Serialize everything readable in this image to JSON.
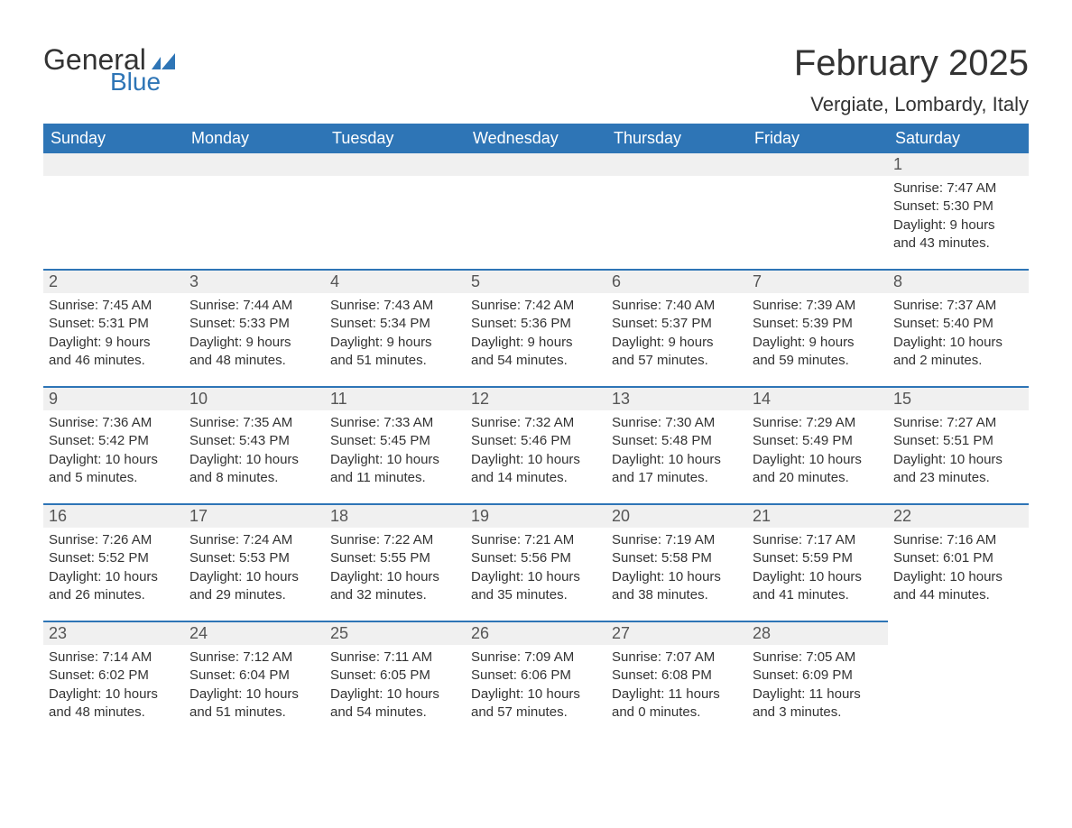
{
  "brand": {
    "word1": "General",
    "word2": "Blue",
    "word1_color": "#333333",
    "word2_color": "#2e75b6",
    "flag_color": "#2e75b6"
  },
  "header": {
    "month_title": "February 2025",
    "location": "Vergiate, Lombardy, Italy"
  },
  "style": {
    "header_bg": "#2e75b6",
    "header_text": "#ffffff",
    "daynum_bg": "#f0f0f0",
    "daynum_text": "#555555",
    "row_divider": "#2e75b6",
    "body_text": "#333333",
    "page_bg": "#ffffff",
    "title_fontsize": 40,
    "location_fontsize": 22,
    "th_fontsize": 18,
    "daynum_fontsize": 18,
    "body_fontsize": 15
  },
  "weekdays": [
    "Sunday",
    "Monday",
    "Tuesday",
    "Wednesday",
    "Thursday",
    "Friday",
    "Saturday"
  ],
  "weeks": [
    [
      {
        "empty": true
      },
      {
        "empty": true
      },
      {
        "empty": true
      },
      {
        "empty": true
      },
      {
        "empty": true
      },
      {
        "empty": true
      },
      {
        "day": "1",
        "sunrise": "Sunrise: 7:47 AM",
        "sunset": "Sunset: 5:30 PM",
        "daylight1": "Daylight: 9 hours",
        "daylight2": "and 43 minutes."
      }
    ],
    [
      {
        "day": "2",
        "sunrise": "Sunrise: 7:45 AM",
        "sunset": "Sunset: 5:31 PM",
        "daylight1": "Daylight: 9 hours",
        "daylight2": "and 46 minutes."
      },
      {
        "day": "3",
        "sunrise": "Sunrise: 7:44 AM",
        "sunset": "Sunset: 5:33 PM",
        "daylight1": "Daylight: 9 hours",
        "daylight2": "and 48 minutes."
      },
      {
        "day": "4",
        "sunrise": "Sunrise: 7:43 AM",
        "sunset": "Sunset: 5:34 PM",
        "daylight1": "Daylight: 9 hours",
        "daylight2": "and 51 minutes."
      },
      {
        "day": "5",
        "sunrise": "Sunrise: 7:42 AM",
        "sunset": "Sunset: 5:36 PM",
        "daylight1": "Daylight: 9 hours",
        "daylight2": "and 54 minutes."
      },
      {
        "day": "6",
        "sunrise": "Sunrise: 7:40 AM",
        "sunset": "Sunset: 5:37 PM",
        "daylight1": "Daylight: 9 hours",
        "daylight2": "and 57 minutes."
      },
      {
        "day": "7",
        "sunrise": "Sunrise: 7:39 AM",
        "sunset": "Sunset: 5:39 PM",
        "daylight1": "Daylight: 9 hours",
        "daylight2": "and 59 minutes."
      },
      {
        "day": "8",
        "sunrise": "Sunrise: 7:37 AM",
        "sunset": "Sunset: 5:40 PM",
        "daylight1": "Daylight: 10 hours",
        "daylight2": "and 2 minutes."
      }
    ],
    [
      {
        "day": "9",
        "sunrise": "Sunrise: 7:36 AM",
        "sunset": "Sunset: 5:42 PM",
        "daylight1": "Daylight: 10 hours",
        "daylight2": "and 5 minutes."
      },
      {
        "day": "10",
        "sunrise": "Sunrise: 7:35 AM",
        "sunset": "Sunset: 5:43 PM",
        "daylight1": "Daylight: 10 hours",
        "daylight2": "and 8 minutes."
      },
      {
        "day": "11",
        "sunrise": "Sunrise: 7:33 AM",
        "sunset": "Sunset: 5:45 PM",
        "daylight1": "Daylight: 10 hours",
        "daylight2": "and 11 minutes."
      },
      {
        "day": "12",
        "sunrise": "Sunrise: 7:32 AM",
        "sunset": "Sunset: 5:46 PM",
        "daylight1": "Daylight: 10 hours",
        "daylight2": "and 14 minutes."
      },
      {
        "day": "13",
        "sunrise": "Sunrise: 7:30 AM",
        "sunset": "Sunset: 5:48 PM",
        "daylight1": "Daylight: 10 hours",
        "daylight2": "and 17 minutes."
      },
      {
        "day": "14",
        "sunrise": "Sunrise: 7:29 AM",
        "sunset": "Sunset: 5:49 PM",
        "daylight1": "Daylight: 10 hours",
        "daylight2": "and 20 minutes."
      },
      {
        "day": "15",
        "sunrise": "Sunrise: 7:27 AM",
        "sunset": "Sunset: 5:51 PM",
        "daylight1": "Daylight: 10 hours",
        "daylight2": "and 23 minutes."
      }
    ],
    [
      {
        "day": "16",
        "sunrise": "Sunrise: 7:26 AM",
        "sunset": "Sunset: 5:52 PM",
        "daylight1": "Daylight: 10 hours",
        "daylight2": "and 26 minutes."
      },
      {
        "day": "17",
        "sunrise": "Sunrise: 7:24 AM",
        "sunset": "Sunset: 5:53 PM",
        "daylight1": "Daylight: 10 hours",
        "daylight2": "and 29 minutes."
      },
      {
        "day": "18",
        "sunrise": "Sunrise: 7:22 AM",
        "sunset": "Sunset: 5:55 PM",
        "daylight1": "Daylight: 10 hours",
        "daylight2": "and 32 minutes."
      },
      {
        "day": "19",
        "sunrise": "Sunrise: 7:21 AM",
        "sunset": "Sunset: 5:56 PM",
        "daylight1": "Daylight: 10 hours",
        "daylight2": "and 35 minutes."
      },
      {
        "day": "20",
        "sunrise": "Sunrise: 7:19 AM",
        "sunset": "Sunset: 5:58 PM",
        "daylight1": "Daylight: 10 hours",
        "daylight2": "and 38 minutes."
      },
      {
        "day": "21",
        "sunrise": "Sunrise: 7:17 AM",
        "sunset": "Sunset: 5:59 PM",
        "daylight1": "Daylight: 10 hours",
        "daylight2": "and 41 minutes."
      },
      {
        "day": "22",
        "sunrise": "Sunrise: 7:16 AM",
        "sunset": "Sunset: 6:01 PM",
        "daylight1": "Daylight: 10 hours",
        "daylight2": "and 44 minutes."
      }
    ],
    [
      {
        "day": "23",
        "sunrise": "Sunrise: 7:14 AM",
        "sunset": "Sunset: 6:02 PM",
        "daylight1": "Daylight: 10 hours",
        "daylight2": "and 48 minutes."
      },
      {
        "day": "24",
        "sunrise": "Sunrise: 7:12 AM",
        "sunset": "Sunset: 6:04 PM",
        "daylight1": "Daylight: 10 hours",
        "daylight2": "and 51 minutes."
      },
      {
        "day": "25",
        "sunrise": "Sunrise: 7:11 AM",
        "sunset": "Sunset: 6:05 PM",
        "daylight1": "Daylight: 10 hours",
        "daylight2": "and 54 minutes."
      },
      {
        "day": "26",
        "sunrise": "Sunrise: 7:09 AM",
        "sunset": "Sunset: 6:06 PM",
        "daylight1": "Daylight: 10 hours",
        "daylight2": "and 57 minutes."
      },
      {
        "day": "27",
        "sunrise": "Sunrise: 7:07 AM",
        "sunset": "Sunset: 6:08 PM",
        "daylight1": "Daylight: 11 hours",
        "daylight2": "and 0 minutes."
      },
      {
        "day": "28",
        "sunrise": "Sunrise: 7:05 AM",
        "sunset": "Sunset: 6:09 PM",
        "daylight1": "Daylight: 11 hours",
        "daylight2": "and 3 minutes."
      },
      {
        "empty": true,
        "trailing": true
      }
    ]
  ]
}
